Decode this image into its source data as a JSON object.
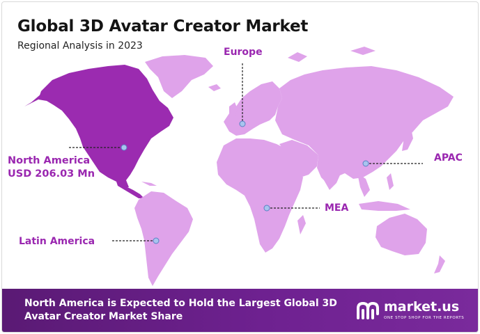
{
  "header": {
    "title": "Global 3D Avatar Creator Market",
    "subtitle": "Regional Analysis in 2023"
  },
  "regions": {
    "europe": {
      "name": "Europe"
    },
    "north_america": {
      "name": "North America",
      "value": "USD 206.03 Mn"
    },
    "apac": {
      "name": "APAC"
    },
    "mea": {
      "name": "MEA"
    },
    "latin_america": {
      "name": "Latin America"
    }
  },
  "footer": {
    "headline": "North America is Expected to Hold the Largest Global 3D Avatar Creator Market Share",
    "brand": "market.us",
    "tagline": "ONE STOP SHOP FOR THE REPORTS"
  },
  "colors": {
    "highlight": "#9b2bb0",
    "land": "#dfa3ea",
    "label": "#9a27b0",
    "banner": "#6a1f8c"
  }
}
